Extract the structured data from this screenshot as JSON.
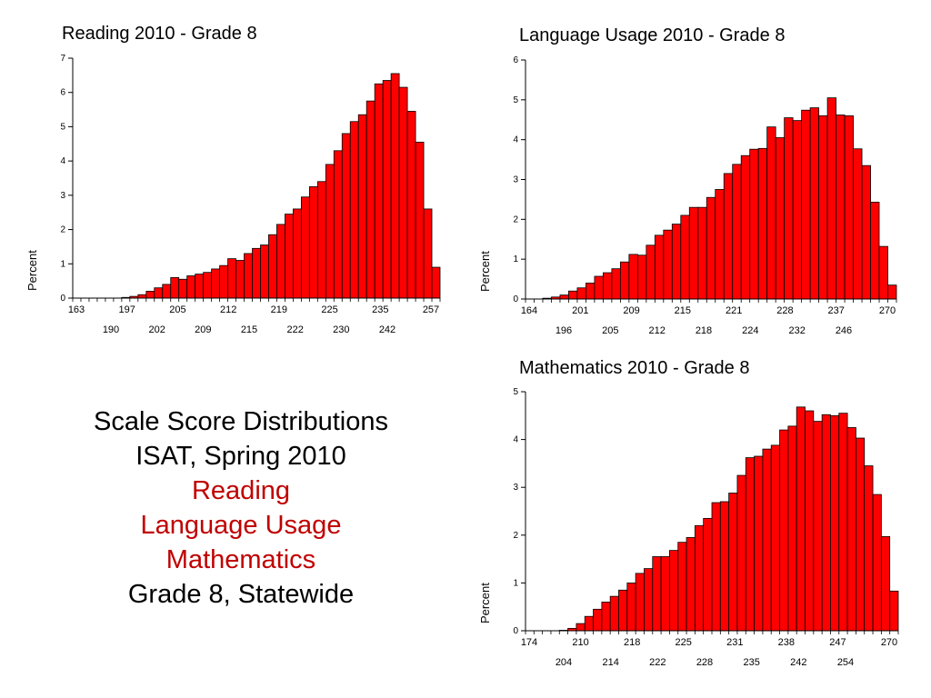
{
  "chart_data": [
    {
      "type": "bar",
      "title": "Reading 2010 - Grade 8",
      "ylabel": "Percent",
      "xlabel": "",
      "ylim": [
        0,
        7
      ],
      "yticks": [
        0,
        1,
        2,
        3,
        4,
        5,
        6,
        7
      ],
      "x_ticks_row1": [
        "163",
        "197",
        "205",
        "212",
        "219",
        "225",
        "235",
        "257"
      ],
      "x_ticks_row2": [
        "190",
        "202",
        "209",
        "215",
        "222",
        "230",
        "242"
      ],
      "values": [
        0,
        0,
        0,
        0,
        0,
        0,
        0.02,
        0.05,
        0.1,
        0.2,
        0.3,
        0.4,
        0.6,
        0.55,
        0.65,
        0.7,
        0.75,
        0.85,
        0.95,
        1.15,
        1.1,
        1.3,
        1.45,
        1.55,
        1.85,
        2.15,
        2.45,
        2.6,
        2.95,
        3.25,
        3.4,
        3.9,
        4.3,
        4.8,
        5.15,
        5.35,
        5.75,
        6.25,
        6.35,
        6.55,
        6.15,
        5.45,
        4.55,
        2.6,
        0.9
      ],
      "bar_color": "#ff0000"
    },
    {
      "type": "bar",
      "title": "Language Usage 2010 - Grade 8",
      "ylabel": "Percent",
      "xlabel": "",
      "ylim": [
        0,
        6
      ],
      "yticks": [
        0,
        1,
        2,
        3,
        4,
        5,
        6
      ],
      "x_ticks_row1": [
        "164",
        "201",
        "209",
        "215",
        "221",
        "228",
        "237",
        "270"
      ],
      "x_ticks_row2": [
        "196",
        "205",
        "212",
        "218",
        "224",
        "232",
        "246"
      ],
      "values": [
        0,
        0,
        0.02,
        0.05,
        0.1,
        0.2,
        0.28,
        0.4,
        0.57,
        0.66,
        0.76,
        0.93,
        1.12,
        1.1,
        1.35,
        1.6,
        1.73,
        1.88,
        2.1,
        2.3,
        2.3,
        2.55,
        2.75,
        3.15,
        3.38,
        3.6,
        3.76,
        3.78,
        4.32,
        4.05,
        4.55,
        4.48,
        4.74,
        4.8,
        4.6,
        5.05,
        4.62,
        4.6,
        3.77,
        3.35,
        2.43,
        1.32,
        0.35
      ],
      "bar_color": "#ff0000"
    },
    {
      "type": "bar",
      "title": "Mathematics 2010 - Grade 8",
      "ylabel": "Percent",
      "xlabel": "",
      "ylim": [
        0,
        5
      ],
      "yticks": [
        0,
        1,
        2,
        3,
        4,
        5
      ],
      "x_ticks_row1": [
        "174",
        "210",
        "218",
        "225",
        "231",
        "238",
        "247",
        "270"
      ],
      "x_ticks_row2": [
        "204",
        "214",
        "222",
        "228",
        "235",
        "242",
        "254"
      ],
      "values": [
        0,
        0,
        0,
        0,
        0.01,
        0.05,
        0.15,
        0.3,
        0.45,
        0.6,
        0.72,
        0.85,
        1.0,
        1.2,
        1.3,
        1.55,
        1.55,
        1.68,
        1.85,
        1.95,
        2.2,
        2.35,
        2.68,
        2.7,
        2.88,
        3.25,
        3.62,
        3.65,
        3.8,
        3.88,
        4.2,
        4.28,
        4.68,
        4.6,
        4.38,
        4.52,
        4.5,
        4.55,
        4.25,
        4.03,
        3.45,
        2.85,
        1.97,
        0.83
      ],
      "bar_color": "#ff0000"
    }
  ],
  "caption": {
    "line1": "Scale Score Distributions",
    "line2": "ISAT, Spring 2010",
    "line3": "Reading",
    "line4": "Language Usage",
    "line5": "Mathematics",
    "line6": "Grade 8, Statewide",
    "accent_color": "#c00000"
  }
}
